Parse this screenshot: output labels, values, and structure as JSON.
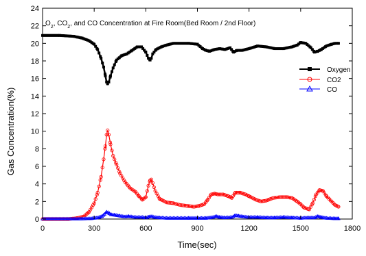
{
  "chart_data": {
    "type": "line",
    "title_parts": {
      "o": "O",
      "o_sub": "2",
      "mid": ", CO",
      "co2_sub": "2",
      "rest": ", and CO Concentration at Fire Room(Bed Room / 2nd Floor)"
    },
    "xlabel": "Time(sec)",
    "ylabel": "Gas Concentration(%)",
    "xlim": [
      0,
      1800
    ],
    "ylim": [
      0,
      24
    ],
    "xticks": [
      0,
      300,
      600,
      900,
      1200,
      1500,
      1800
    ],
    "yticks": [
      0,
      2,
      4,
      6,
      8,
      10,
      12,
      14,
      16,
      18,
      20,
      22,
      24
    ],
    "grid": false,
    "legend_position": "right",
    "series": [
      {
        "name": "Oxygen",
        "color": "#000000",
        "marker": "filled-square",
        "x": [
          0,
          100,
          180,
          230,
          270,
          300,
          320,
          340,
          355,
          365,
          372,
          378,
          385,
          395,
          410,
          430,
          460,
          490,
          520,
          550,
          575,
          600,
          615,
          625,
          632,
          640,
          660,
          690,
          720,
          760,
          800,
          850,
          900,
          930,
          950,
          970,
          1000,
          1030,
          1060,
          1090,
          1110,
          1130,
          1160,
          1200,
          1250,
          1300,
          1350,
          1400,
          1450,
          1480,
          1500,
          1530,
          1560,
          1580,
          1600,
          1620,
          1650,
          1680,
          1700,
          1720
        ],
        "y": [
          20.9,
          20.9,
          20.8,
          20.6,
          20.3,
          19.9,
          19.3,
          18.3,
          17.3,
          16.3,
          15.6,
          15.4,
          15.6,
          16.3,
          17.2,
          18.1,
          18.6,
          18.8,
          19.2,
          19.6,
          19.6,
          19.0,
          18.3,
          18.1,
          18.3,
          18.8,
          19.3,
          19.6,
          19.8,
          20.0,
          20.0,
          20.0,
          19.9,
          19.4,
          19.2,
          19.1,
          19.3,
          19.4,
          19.3,
          19.5,
          19.0,
          19.2,
          19.2,
          19.4,
          19.7,
          19.6,
          19.4,
          19.4,
          19.6,
          19.8,
          20.1,
          20.0,
          19.5,
          19.0,
          19.1,
          19.3,
          19.7,
          19.9,
          20.0,
          20.0
        ]
      },
      {
        "name": "CO2",
        "color": "#ff0000",
        "marker": "open-circle",
        "x": [
          0,
          150,
          200,
          240,
          270,
          300,
          320,
          340,
          355,
          365,
          372,
          378,
          385,
          395,
          410,
          430,
          450,
          480,
          510,
          540,
          560,
          580,
          600,
          615,
          625,
          632,
          640,
          655,
          680,
          720,
          760,
          800,
          840,
          880,
          910,
          940,
          960,
          980,
          1000,
          1020,
          1050,
          1080,
          1100,
          1120,
          1150,
          1180,
          1200,
          1240,
          1270,
          1300,
          1340,
          1380,
          1420,
          1450,
          1480,
          1500,
          1520,
          1550,
          1570,
          1590,
          1610,
          1630,
          1650,
          1680,
          1700,
          1720
        ],
        "y": [
          0.0,
          0.0,
          0.1,
          0.3,
          0.8,
          1.8,
          3.0,
          4.8,
          6.8,
          8.3,
          9.6,
          10.1,
          9.6,
          8.5,
          7.2,
          6.2,
          5.2,
          4.2,
          3.5,
          3.1,
          2.6,
          2.2,
          2.5,
          3.8,
          4.4,
          4.5,
          4.1,
          3.2,
          2.3,
          1.9,
          1.8,
          1.6,
          1.5,
          1.4,
          1.5,
          1.7,
          2.2,
          2.8,
          2.9,
          2.8,
          2.8,
          2.6,
          2.4,
          3.0,
          3.0,
          2.8,
          2.6,
          2.2,
          2.0,
          2.1,
          2.4,
          2.5,
          2.5,
          2.4,
          2.0,
          1.7,
          1.3,
          1.1,
          1.8,
          2.8,
          3.3,
          3.2,
          2.6,
          2.0,
          1.6,
          1.4
        ]
      },
      {
        "name": "CO",
        "color": "#0000ff",
        "marker": "open-triangle",
        "x": [
          0,
          200,
          280,
          320,
          345,
          360,
          372,
          380,
          390,
          400,
          420,
          450,
          480,
          500,
          540,
          580,
          600,
          620,
          635,
          650,
          680,
          720,
          760,
          800,
          850,
          900,
          950,
          990,
          1010,
          1030,
          1060,
          1100,
          1120,
          1140,
          1170,
          1200,
          1250,
          1300,
          1350,
          1400,
          1450,
          1500,
          1540,
          1580,
          1600,
          1620,
          1650,
          1700,
          1720
        ],
        "y": [
          0.0,
          0.0,
          0.05,
          0.15,
          0.3,
          0.55,
          0.8,
          0.75,
          0.6,
          0.5,
          0.45,
          0.35,
          0.25,
          0.3,
          0.2,
          0.2,
          0.15,
          0.25,
          0.3,
          0.2,
          0.15,
          0.1,
          0.1,
          0.1,
          0.1,
          0.1,
          0.1,
          0.2,
          0.3,
          0.2,
          0.15,
          0.2,
          0.4,
          0.35,
          0.25,
          0.2,
          0.2,
          0.15,
          0.15,
          0.2,
          0.15,
          0.1,
          0.15,
          0.15,
          0.3,
          0.2,
          0.1,
          0.05,
          0.05
        ]
      }
    ]
  }
}
